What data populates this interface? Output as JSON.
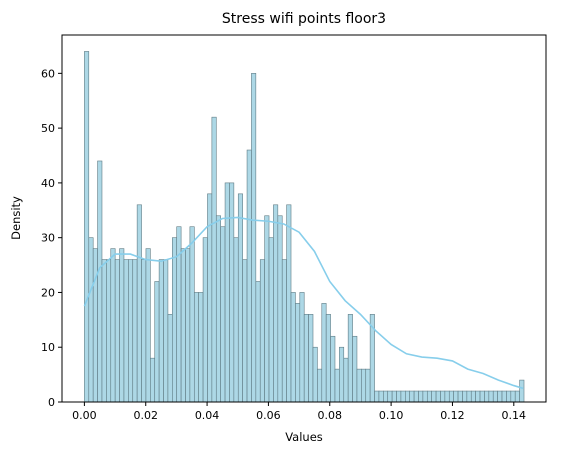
{
  "chart_data": {
    "type": "histogram",
    "title": "Stress wifi points floor3",
    "xlabel": "Values",
    "ylabel": "Density",
    "xlim": [
      -0.0073,
      0.1505
    ],
    "ylim": [
      0,
      67
    ],
    "x_ticks": [
      0.0,
      0.02,
      0.04,
      0.06,
      0.08,
      0.1,
      0.12,
      0.14
    ],
    "x_tick_labels": [
      "0.00",
      "0.02",
      "0.04",
      "0.06",
      "0.08",
      "0.10",
      "0.12",
      "0.14"
    ],
    "y_ticks": [
      0,
      10,
      20,
      30,
      40,
      50,
      60
    ],
    "y_tick_labels": [
      "0",
      "10",
      "20",
      "30",
      "40",
      "50",
      "60"
    ],
    "bin_start": 0.0,
    "bin_width": 0.0014333,
    "bar_values": [
      64,
      30,
      28,
      44,
      26,
      26,
      28,
      26,
      28,
      26,
      26,
      26,
      36,
      26,
      28,
      8,
      22,
      26,
      26,
      16,
      30,
      32,
      28,
      28,
      32,
      20,
      20,
      30,
      38,
      52,
      34,
      32,
      40,
      40,
      30,
      38,
      26,
      46,
      60,
      22,
      26,
      34,
      30,
      36,
      34,
      26,
      36,
      20,
      18,
      20,
      16,
      16,
      10,
      6,
      18,
      16,
      12,
      6,
      10,
      8,
      16,
      12,
      6,
      6,
      6,
      16,
      2,
      2,
      2,
      2,
      2,
      2,
      2,
      2,
      2,
      2,
      2,
      2,
      2,
      2,
      2,
      2,
      2,
      2,
      2,
      2,
      2,
      2,
      2,
      2,
      2,
      2,
      2,
      2,
      2,
      2,
      2,
      2,
      2,
      4
    ],
    "kde": {
      "x": [
        0.0,
        0.005,
        0.01,
        0.015,
        0.02,
        0.025,
        0.03,
        0.035,
        0.04,
        0.045,
        0.05,
        0.055,
        0.06,
        0.065,
        0.07,
        0.075,
        0.08,
        0.085,
        0.09,
        0.095,
        0.1,
        0.105,
        0.11,
        0.115,
        0.12,
        0.125,
        0.13,
        0.135,
        0.14,
        0.143
      ],
      "y": [
        17.5,
        24.5,
        27,
        27,
        26,
        25.7,
        26.5,
        29,
        32,
        33.5,
        33.7,
        33.2,
        33,
        32.5,
        31,
        27.5,
        22,
        18.5,
        16,
        13,
        10.5,
        8.8,
        8.2,
        8,
        7.5,
        6,
        5.2,
        4,
        3,
        2.5
      ]
    },
    "bar_fill": "#add8e6",
    "bar_edge": "#5f7b84",
    "kde_color": "#87ceeb",
    "grid": false,
    "legend": "none"
  }
}
